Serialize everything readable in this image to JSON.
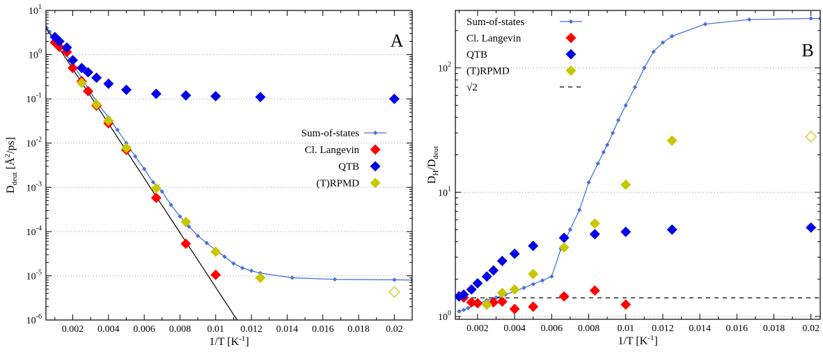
{
  "colors": {
    "sum_of_states": "#4a72d9",
    "classical_langevin": "#ff0000",
    "qtb": "#0000e6",
    "rpmd": "#c8c800",
    "arrhenius": "#000000",
    "dashed": "#000000"
  },
  "chart_data": [
    {
      "type": "scatter",
      "panel_label": "A",
      "xlabel": "1/T [K",
      "xlabel_sup": "-1",
      "xlabel_end": "]",
      "ylabel_main": "D",
      "ylabel_sub": "deut",
      "ylabel_unit": " [Å",
      "ylabel_unit_sup": "2",
      "ylabel_unit_end": "/ps]",
      "x_scale": "linear",
      "y_scale": "log",
      "xlim": [
        0.0005,
        0.021
      ],
      "ylim": [
        1e-06,
        10
      ],
      "x_ticks": [
        0.002,
        0.004,
        0.006,
        0.008,
        0.01,
        0.012,
        0.014,
        0.016,
        0.018,
        0.02
      ],
      "x_tick_labels": [
        "0.002",
        "0.004",
        "0.006",
        "0.008",
        "0.01",
        "0.012",
        "0.014",
        "0.016",
        "0.018",
        "0.02"
      ],
      "y_ticks": [
        1e-06,
        1e-05,
        0.0001,
        0.001,
        0.01,
        0.1,
        1,
        10
      ],
      "y_tick_labels": [
        {
          "base": "10",
          "exp": "-6"
        },
        {
          "base": "10",
          "exp": "-5"
        },
        {
          "base": "10",
          "exp": "-4"
        },
        {
          "base": "10",
          "exp": "-3"
        },
        {
          "base": "10",
          "exp": "-2"
        },
        {
          "base": "10",
          "exp": "-1"
        },
        {
          "base": "10",
          "exp": "0"
        },
        {
          "base": "10",
          "exp": "1"
        }
      ],
      "grid": "horizontal dotted",
      "legend_position": "middle-right",
      "series": [
        {
          "name": "Sum-of-states",
          "style": "line-small-diamond",
          "x": [
            0.0005,
            0.0007,
            0.001,
            0.00125,
            0.0015,
            0.002,
            0.0025,
            0.003,
            0.0035,
            0.004,
            0.0045,
            0.005,
            0.0055,
            0.006,
            0.0065,
            0.007,
            0.0075,
            0.008,
            0.0085,
            0.009,
            0.0095,
            0.01,
            0.0105,
            0.011,
            0.0115,
            0.012,
            0.0125,
            0.01429,
            0.01667,
            0.02,
            0.021
          ],
          "y": [
            4.2,
            3.3,
            2.3,
            1.7,
            1.2,
            0.6,
            0.3,
            0.14,
            0.07,
            0.038,
            0.02,
            0.01,
            0.005,
            0.0026,
            0.0013,
            0.0008,
            0.0004,
            0.00022,
            0.00013,
            8e-05,
            5.5e-05,
            3.8e-05,
            2.7e-05,
            1.9e-05,
            1.5e-05,
            1.3e-05,
            1.15e-05,
            9e-06,
            8.3e-06,
            8.1e-06,
            8e-06
          ]
        },
        {
          "name": "Cl. Langevin",
          "style": "diamond",
          "x": [
            0.001,
            0.00125,
            0.00167,
            0.002,
            0.0025,
            0.002857,
            0.00333,
            0.004,
            0.005,
            0.00667,
            0.00833,
            0.01
          ],
          "y": [
            1.9,
            1.5,
            1.15,
            0.5,
            0.25,
            0.15,
            0.07,
            0.028,
            0.007,
            0.00058,
            5.3e-05,
            1.05e-05
          ]
        },
        {
          "name": "QTB",
          "style": "diamond",
          "x": [
            0.001,
            0.00125,
            0.00167,
            0.002,
            0.0025,
            0.002857,
            0.00333,
            0.004,
            0.005,
            0.00667,
            0.00833,
            0.01,
            0.0125,
            0.02
          ],
          "y": [
            2.5,
            2.0,
            1.45,
            0.75,
            0.5,
            0.4,
            0.3,
            0.22,
            0.16,
            0.13,
            0.12,
            0.115,
            0.11,
            0.1
          ]
        },
        {
          "name": "(T)RPMD",
          "style": "diamond",
          "x": [
            0.0025,
            0.00333,
            0.004,
            0.005,
            0.00667,
            0.00833,
            0.01,
            0.0125,
            0.02
          ],
          "y": [
            0.23,
            0.075,
            0.032,
            0.0077,
            0.00095,
            0.000165,
            3.5e-05,
            9e-06,
            4.3e-06
          ],
          "hollow_last": true
        },
        {
          "name": "",
          "style": "line-black",
          "x": [
            0.0005,
            0.0112
          ],
          "y": [
            4.0,
            1e-06
          ]
        }
      ]
    },
    {
      "type": "scatter",
      "panel_label": "B",
      "xlabel": "1/T [K",
      "xlabel_sup": "-1",
      "xlabel_end": "]",
      "ylabel_main": "D",
      "ylabel_sub": "H",
      "ylabel_mid": "/D",
      "ylabel_sub2": "deut",
      "x_scale": "linear",
      "y_scale": "log",
      "xlim": [
        0.0008,
        0.0205
      ],
      "ylim": [
        0.95,
        290
      ],
      "x_ticks": [
        0.002,
        0.004,
        0.006,
        0.008,
        0.01,
        0.012,
        0.014,
        0.016,
        0.018,
        0.02
      ],
      "x_tick_labels": [
        "0.002",
        "0.004",
        "0.006",
        "0.008",
        "0.01",
        "0.012",
        "0.014",
        "0.016",
        "0.018",
        "0.02"
      ],
      "y_ticks": [
        1,
        10,
        100
      ],
      "y_tick_labels": [
        {
          "base": "10",
          "exp": "0"
        },
        {
          "base": "10",
          "exp": "1"
        },
        {
          "base": "10",
          "exp": "2"
        }
      ],
      "grid": "horizontal dotted",
      "legend_position": "top-left",
      "series": [
        {
          "name": "Sum-of-states",
          "style": "line-small-diamond",
          "x": [
            0.001,
            0.00125,
            0.0015,
            0.002,
            0.0025,
            0.003,
            0.0035,
            0.004,
            0.0045,
            0.005,
            0.0055,
            0.006,
            0.0065,
            0.007,
            0.0075,
            0.008,
            0.0085,
            0.0088,
            0.009,
            0.0093,
            0.0096,
            0.01,
            0.0105,
            0.011,
            0.0115,
            0.012,
            0.0125,
            0.01429,
            0.01667,
            0.02,
            0.0205
          ],
          "y": [
            1.1,
            1.13,
            1.17,
            1.27,
            1.35,
            1.42,
            1.5,
            1.6,
            1.7,
            1.82,
            1.95,
            2.1,
            3.5,
            5.0,
            7.2,
            12.0,
            17.0,
            21.0,
            24.0,
            30.0,
            38.0,
            50.0,
            70.0,
            100.0,
            135.0,
            160.0,
            180.0,
            225.0,
            245.0,
            250.0,
            250.0
          ]
        },
        {
          "name": "Cl. Langevin",
          "style": "diamond",
          "x": [
            0.001,
            0.00125,
            0.00167,
            0.002,
            0.0025,
            0.002857,
            0.00333,
            0.004,
            0.005,
            0.00667,
            0.00833,
            0.01
          ],
          "y": [
            1.45,
            1.42,
            1.3,
            1.28,
            1.25,
            1.3,
            1.32,
            1.15,
            1.2,
            1.45,
            1.62,
            1.25
          ]
        },
        {
          "name": "QTB",
          "style": "diamond",
          "x": [
            0.001,
            0.00125,
            0.00167,
            0.002,
            0.0025,
            0.002857,
            0.00333,
            0.004,
            0.005,
            0.00667,
            0.00833,
            0.01,
            0.0125,
            0.02
          ],
          "y": [
            1.45,
            1.5,
            1.65,
            1.85,
            2.1,
            2.35,
            2.8,
            3.2,
            3.7,
            4.3,
            4.6,
            4.8,
            5.0,
            5.2
          ]
        },
        {
          "name": "(T)RPMD",
          "style": "diamond",
          "x": [
            0.0025,
            0.00333,
            0.004,
            0.005,
            0.00667,
            0.00833,
            0.01,
            0.0125,
            0.02
          ],
          "y": [
            1.25,
            1.55,
            1.65,
            2.2,
            3.6,
            5.6,
            11.5,
            26.0,
            28.0
          ],
          "hollow_last": true
        },
        {
          "name": "√2",
          "style": "dashed",
          "x": [
            0.0008,
            0.0205
          ],
          "y": [
            1.414,
            1.414
          ]
        }
      ]
    }
  ]
}
